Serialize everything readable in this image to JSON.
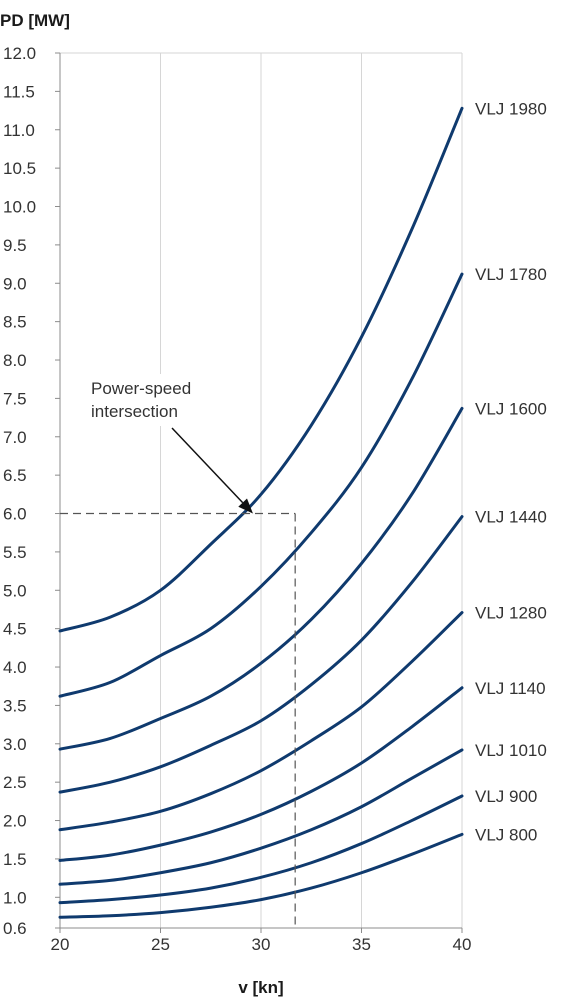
{
  "chart_data": {
    "type": "line",
    "ylabel": "PD [MW]",
    "xlabel": "v [kn]",
    "xlim": [
      20,
      40
    ],
    "ylim": [
      0.6,
      12.0
    ],
    "x_ticks": [
      "20",
      "25",
      "30",
      "35",
      "40"
    ],
    "y_ticks": [
      "0.6",
      "1.0",
      "1.5",
      "2.0",
      "2.5",
      "3.0",
      "3.5",
      "4.0",
      "4.5",
      "5.0",
      "5.5",
      "6.0",
      "6.5",
      "7.0",
      "7.5",
      "8.0",
      "8.5",
      "9.0",
      "9.5",
      "10.0",
      "10.5",
      "11.0",
      "11.5",
      "12.0"
    ],
    "grid": "vertical",
    "line_color": "#0f3a6e",
    "x": [
      20,
      22.5,
      25,
      27.5,
      30,
      32.5,
      35,
      37.5,
      40
    ],
    "series": [
      {
        "name": "VLJ 1980",
        "values": [
          4.47,
          4.65,
          5.0,
          5.6,
          6.25,
          7.15,
          8.3,
          9.7,
          11.28
        ]
      },
      {
        "name": "VLJ 1780",
        "values": [
          3.62,
          3.8,
          4.15,
          4.5,
          5.05,
          5.75,
          6.6,
          7.75,
          9.12
        ]
      },
      {
        "name": "VLJ 1600",
        "values": [
          2.93,
          3.07,
          3.33,
          3.62,
          4.05,
          4.62,
          5.35,
          6.25,
          7.37
        ]
      },
      {
        "name": "VLJ 1440",
        "values": [
          2.37,
          2.5,
          2.7,
          2.98,
          3.3,
          3.77,
          4.35,
          5.1,
          5.96
        ]
      },
      {
        "name": "VLJ 1280",
        "values": [
          1.88,
          1.98,
          2.12,
          2.35,
          2.65,
          3.04,
          3.48,
          4.07,
          4.71
        ]
      },
      {
        "name": "VLJ 1140",
        "values": [
          1.48,
          1.55,
          1.68,
          1.85,
          2.08,
          2.38,
          2.75,
          3.22,
          3.73
        ]
      },
      {
        "name": "VLJ 1010",
        "values": [
          1.17,
          1.22,
          1.32,
          1.45,
          1.64,
          1.88,
          2.18,
          2.55,
          2.92
        ]
      },
      {
        "name": "VLJ 900",
        "values": [
          0.93,
          0.97,
          1.03,
          1.12,
          1.26,
          1.45,
          1.7,
          2.0,
          2.32
        ]
      },
      {
        "name": "VLJ 800",
        "values": [
          0.74,
          0.76,
          0.8,
          0.87,
          0.97,
          1.12,
          1.32,
          1.56,
          1.82
        ]
      }
    ],
    "annotation": {
      "text_line1": "Power-speed",
      "text_line2": "intersection",
      "x": 29.6,
      "y": 6.0,
      "v_line_x": 31.7
    }
  }
}
